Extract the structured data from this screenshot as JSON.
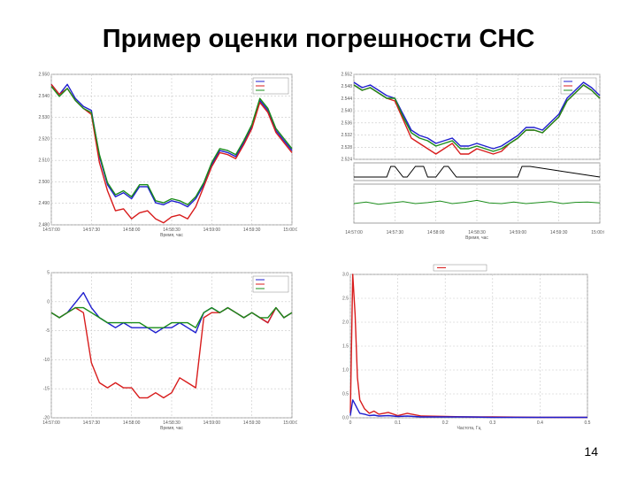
{
  "slide": {
    "title": "Пример оценки погрешности СНС",
    "page_number": "14"
  },
  "chart_data": [
    {
      "id": "tl",
      "type": "line",
      "title": "",
      "xlabel": "Время, час",
      "ylabel": "",
      "x_ticks": [
        "14:57:00",
        "14:57:30",
        "14:58:00",
        "14:58:30",
        "14:59:00",
        "14:59:30",
        "15:00:00"
      ],
      "y_ticks": [
        "2.550",
        "2.540",
        "2.530",
        "2.520",
        "2.510",
        "2.500",
        "2.490",
        "2.480"
      ],
      "ylim": [
        2.478,
        2.553
      ],
      "xlim": [
        0,
        60
      ],
      "grid": true,
      "legend_position": "top-right",
      "series": [
        {
          "color": "#1f1fcf",
          "x": [
            0,
            2,
            4,
            6,
            8,
            10,
            12,
            14,
            16,
            18,
            20,
            22,
            24,
            26,
            28,
            30,
            32,
            34,
            36,
            38,
            40,
            42,
            44,
            46,
            48,
            50,
            52,
            54,
            56,
            58,
            60
          ],
          "y": [
            2.548,
            2.543,
            2.548,
            2.541,
            2.537,
            2.535,
            2.512,
            2.498,
            2.492,
            2.494,
            2.491,
            2.497,
            2.497,
            2.489,
            2.488,
            2.49,
            2.489,
            2.487,
            2.491,
            2.498,
            2.508,
            2.515,
            2.514,
            2.512,
            2.519,
            2.527,
            2.54,
            2.535,
            2.525,
            2.52,
            2.515
          ]
        },
        {
          "color": "#d81c1c",
          "x": [
            0,
            2,
            4,
            6,
            8,
            10,
            12,
            14,
            16,
            18,
            20,
            22,
            24,
            26,
            28,
            30,
            32,
            34,
            36,
            38,
            40,
            42,
            44,
            46,
            48,
            50,
            52,
            54,
            56,
            58,
            60
          ],
          "y": [
            2.548,
            2.543,
            2.546,
            2.54,
            2.536,
            2.533,
            2.509,
            2.495,
            2.485,
            2.486,
            2.481,
            2.484,
            2.485,
            2.481,
            2.479,
            2.482,
            2.483,
            2.481,
            2.487,
            2.497,
            2.507,
            2.514,
            2.513,
            2.511,
            2.518,
            2.526,
            2.539,
            2.534,
            2.524,
            2.519,
            2.514
          ]
        },
        {
          "color": "#1a8c1a",
          "x": [
            0,
            2,
            4,
            6,
            8,
            10,
            12,
            14,
            16,
            18,
            20,
            22,
            24,
            26,
            28,
            30,
            32,
            34,
            36,
            38,
            40,
            42,
            44,
            46,
            48,
            50,
            52,
            54,
            56,
            58,
            60
          ],
          "y": [
            2.547,
            2.542,
            2.546,
            2.54,
            2.536,
            2.534,
            2.513,
            2.499,
            2.493,
            2.495,
            2.492,
            2.498,
            2.498,
            2.49,
            2.489,
            2.491,
            2.49,
            2.488,
            2.492,
            2.499,
            2.509,
            2.516,
            2.515,
            2.513,
            2.52,
            2.528,
            2.541,
            2.536,
            2.526,
            2.521,
            2.516
          ]
        }
      ]
    },
    {
      "id": "tr",
      "type": "line",
      "title": "",
      "xlabel": "Время, час",
      "ylabel": "",
      "x_ticks": [
        "14:57:00",
        "14:57:30",
        "14:58:00",
        "14:58:30",
        "14:59:00",
        "14:59:30",
        "15:00:00"
      ],
      "y_ticks": [
        "2.552",
        "2.548",
        "2.544",
        "2.540",
        "2.536",
        "2.532",
        "2.528",
        "2.524"
      ],
      "ylim": [
        2.522,
        2.554
      ],
      "xlim": [
        0,
        60
      ],
      "grid": true,
      "legend_position": "top-right",
      "series": [
        {
          "color": "#1f1fcf",
          "x": [
            0,
            2,
            4,
            6,
            8,
            10,
            12,
            14,
            16,
            18,
            20,
            22,
            24,
            26,
            28,
            30,
            32,
            34,
            36,
            38,
            40,
            42,
            44,
            46,
            48,
            50,
            52,
            54,
            56,
            58,
            60
          ],
          "y": [
            2.551,
            2.549,
            2.55,
            2.548,
            2.546,
            2.545,
            2.539,
            2.533,
            2.531,
            2.53,
            2.528,
            2.529,
            2.53,
            2.527,
            2.527,
            2.528,
            2.527,
            2.526,
            2.527,
            2.529,
            2.531,
            2.534,
            2.534,
            2.533,
            2.536,
            2.539,
            2.545,
            2.548,
            2.551,
            2.549,
            2.546
          ]
        },
        {
          "color": "#d81c1c",
          "x": [
            0,
            2,
            4,
            6,
            8,
            10,
            12,
            14,
            16,
            18,
            20,
            22,
            24,
            26,
            28,
            30,
            32,
            34,
            36,
            38,
            40,
            42,
            44,
            46,
            48,
            50,
            52,
            54,
            56,
            58,
            60
          ],
          "y": [
            2.55,
            2.548,
            2.549,
            2.547,
            2.545,
            2.544,
            2.537,
            2.53,
            2.528,
            2.526,
            2.524,
            2.526,
            2.528,
            2.524,
            2.524,
            2.526,
            2.525,
            2.524,
            2.525,
            2.528,
            2.53,
            2.533,
            2.533,
            2.532,
            2.535,
            2.538,
            2.544,
            2.547,
            2.55,
            2.548,
            2.545
          ]
        },
        {
          "color": "#1a8c1a",
          "x": [
            0,
            2,
            4,
            6,
            8,
            10,
            12,
            14,
            16,
            18,
            20,
            22,
            24,
            26,
            28,
            30,
            32,
            34,
            36,
            38,
            40,
            42,
            44,
            46,
            48,
            50,
            52,
            54,
            56,
            58,
            60
          ],
          "y": [
            2.55,
            2.548,
            2.549,
            2.547,
            2.545,
            2.545,
            2.538,
            2.532,
            2.53,
            2.529,
            2.527,
            2.528,
            2.529,
            2.526,
            2.526,
            2.527,
            2.526,
            2.525,
            2.526,
            2.528,
            2.53,
            2.533,
            2.533,
            2.532,
            2.535,
            2.538,
            2.544,
            2.547,
            2.55,
            2.548,
            2.545
          ]
        }
      ],
      "sub_panels": [
        {
          "color": "#000000",
          "x": [
            0,
            8,
            9,
            10,
            12,
            13,
            15,
            17,
            18,
            20,
            22,
            23,
            25,
            40,
            41,
            43,
            60
          ],
          "y": [
            0,
            0,
            1,
            1,
            0,
            0,
            1,
            1,
            0,
            0,
            1,
            1,
            0,
            0,
            1,
            1,
            0
          ]
        },
        {
          "color": "#1a8c1a",
          "x": [
            0,
            3,
            6,
            9,
            12,
            15,
            18,
            21,
            24,
            27,
            30,
            33,
            36,
            39,
            42,
            45,
            48,
            51,
            54,
            57,
            60
          ],
          "y": [
            0.5,
            0.55,
            0.48,
            0.52,
            0.56,
            0.5,
            0.53,
            0.58,
            0.5,
            0.54,
            0.6,
            0.52,
            0.5,
            0.55,
            0.5,
            0.53,
            0.56,
            0.5,
            0.54,
            0.55,
            0.52
          ]
        }
      ]
    },
    {
      "id": "bl",
      "type": "line",
      "title": "",
      "xlabel": "Время, час",
      "ylabel": "",
      "x_ticks": [
        "14:57:00",
        "14:57:30",
        "14:58:00",
        "14:58:30",
        "14:59:00",
        "14:59:30",
        "15:00:00"
      ],
      "y_ticks": [
        "5",
        "0",
        "-5",
        "-10",
        "-15",
        "-20"
      ],
      "ylim": [
        -21,
        8
      ],
      "xlim": [
        0,
        60
      ],
      "grid": true,
      "legend_position": "top-right",
      "series": [
        {
          "color": "#1f1fcf",
          "x": [
            0,
            2,
            4,
            6,
            8,
            10,
            12,
            14,
            16,
            18,
            20,
            22,
            24,
            26,
            28,
            30,
            32,
            34,
            36,
            38,
            40,
            42,
            44,
            46,
            48,
            50,
            52,
            54,
            56,
            58,
            60
          ],
          "y": [
            0,
            -1,
            0,
            2,
            4,
            1,
            -1,
            -2,
            -3,
            -2,
            -3,
            -3,
            -3,
            -4,
            -3,
            -3,
            -2,
            -3,
            -4,
            0,
            1,
            0,
            1,
            0,
            -1,
            0,
            -1,
            -2,
            1,
            -1,
            0
          ]
        },
        {
          "color": "#d81c1c",
          "x": [
            0,
            2,
            4,
            6,
            8,
            10,
            12,
            14,
            16,
            18,
            20,
            22,
            24,
            26,
            28,
            30,
            32,
            34,
            36,
            38,
            40,
            42,
            44,
            46,
            48,
            50,
            52,
            54,
            56,
            58,
            60
          ],
          "y": [
            0,
            -1,
            0,
            1,
            0,
            -10,
            -14,
            -15,
            -14,
            -15,
            -15,
            -17,
            -17,
            -16,
            -17,
            -16,
            -13,
            -14,
            -15,
            -1,
            0,
            0,
            1,
            0,
            -1,
            0,
            -1,
            -2,
            1,
            -1,
            0
          ]
        },
        {
          "color": "#1a8c1a",
          "x": [
            0,
            2,
            4,
            6,
            8,
            10,
            12,
            14,
            16,
            18,
            20,
            22,
            24,
            26,
            28,
            30,
            32,
            34,
            36,
            38,
            40,
            42,
            44,
            46,
            48,
            50,
            52,
            54,
            56,
            58,
            60
          ],
          "y": [
            0,
            -1,
            0,
            1,
            1,
            0,
            -1,
            -2,
            -2,
            -2,
            -2,
            -2,
            -3,
            -3,
            -3,
            -2,
            -2,
            -2,
            -3,
            0,
            1,
            0,
            1,
            0,
            -1,
            0,
            -1,
            -1,
            1,
            -1,
            0
          ]
        }
      ]
    },
    {
      "id": "br",
      "type": "line",
      "title": "",
      "xlabel": "Частота, Гц",
      "ylabel": "",
      "x_ticks": [
        "0",
        "0.1",
        "0.2",
        "0.3",
        "0.4",
        "0.5"
      ],
      "y_ticks": [
        "3.0",
        "2.5",
        "2.0",
        "1.5",
        "1.0",
        "0.5",
        "0.0"
      ],
      "ylim": [
        0,
        3.2
      ],
      "xlim": [
        0,
        0.5
      ],
      "grid": true,
      "legend_position": "top",
      "series": [
        {
          "color": "#d81c1c",
          "x": [
            0,
            0.005,
            0.01,
            0.015,
            0.02,
            0.03,
            0.04,
            0.05,
            0.06,
            0.08,
            0.1,
            0.12,
            0.15,
            0.2,
            0.25,
            0.3,
            0.4,
            0.5
          ],
          "y": [
            0.1,
            3.2,
            2.3,
            0.9,
            0.4,
            0.2,
            0.1,
            0.15,
            0.08,
            0.12,
            0.05,
            0.1,
            0.04,
            0.03,
            0.02,
            0.02,
            0.01,
            0.01
          ]
        },
        {
          "color": "#1f1fcf",
          "x": [
            0,
            0.005,
            0.01,
            0.015,
            0.02,
            0.03,
            0.04,
            0.05,
            0.06,
            0.08,
            0.1,
            0.12,
            0.15,
            0.2,
            0.25,
            0.3,
            0.4,
            0.5
          ],
          "y": [
            0.05,
            0.4,
            0.3,
            0.2,
            0.1,
            0.08,
            0.05,
            0.06,
            0.04,
            0.05,
            0.03,
            0.04,
            0.02,
            0.02,
            0.02,
            0.01,
            0.01,
            0.01
          ]
        }
      ]
    }
  ]
}
